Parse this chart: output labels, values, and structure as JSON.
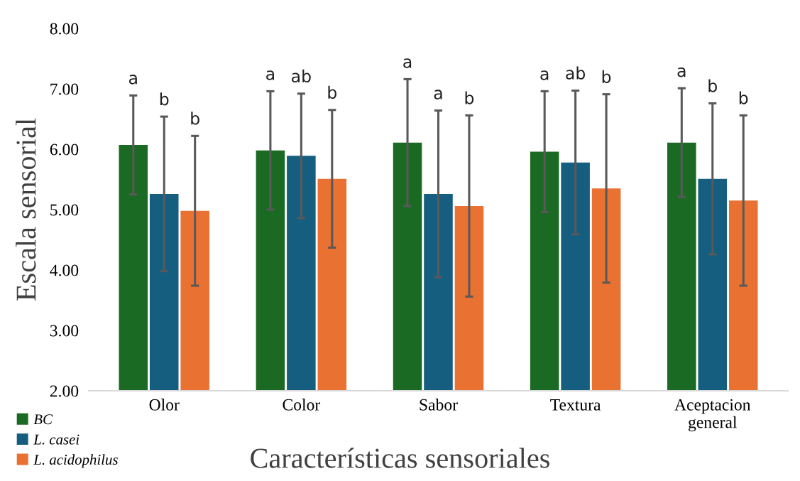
{
  "chart_data": {
    "type": "bar",
    "xlabel": "Características sensoriales",
    "ylabel": "Escala sensorial",
    "categories": [
      "Olor",
      "Color",
      "Sabor",
      "Textura",
      "Aceptacion\ngeneral"
    ],
    "series": [
      {
        "name": "BC",
        "color": "#1b6a24",
        "values": [
          6.07,
          5.98,
          6.11,
          5.96,
          6.11
        ],
        "errors": [
          0.82,
          0.98,
          1.05,
          1.0,
          0.9
        ]
      },
      {
        "name": "L. casei",
        "color": "#165e80",
        "values": [
          5.26,
          5.89,
          5.26,
          5.78,
          5.51
        ],
        "errors": [
          1.28,
          1.03,
          1.38,
          1.19,
          1.25
        ]
      },
      {
        "name": "L. acidophilus",
        "color": "#e97132",
        "values": [
          4.98,
          5.51,
          5.06,
          5.35,
          5.15
        ],
        "errors": [
          1.24,
          1.14,
          1.5,
          1.56,
          1.41
        ]
      }
    ],
    "ylim": [
      2,
      8
    ],
    "yticks": [
      {
        "value": 2,
        "label": "2.00"
      },
      {
        "value": 3,
        "label": "3.00"
      },
      {
        "value": 4,
        "label": "4.00"
      },
      {
        "value": 5,
        "label": "5.00"
      },
      {
        "value": 6,
        "label": "6.00"
      },
      {
        "value": 7,
        "label": "7.00"
      },
      {
        "value": 8,
        "label": "8.00"
      }
    ],
    "grid": false,
    "legend": "bottom left",
    "annotations": [
      "a",
      "b",
      "b",
      "a",
      "ab",
      "b",
      "a",
      "a",
      "b",
      "a",
      "ab",
      "b",
      "a",
      "b",
      "b"
    ]
  }
}
